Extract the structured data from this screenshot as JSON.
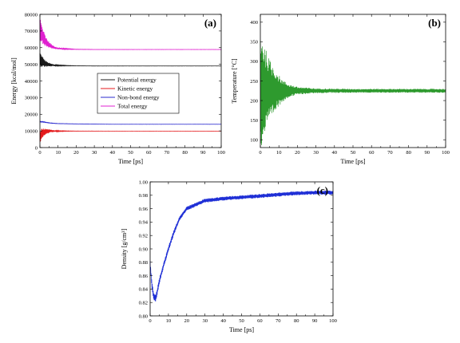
{
  "chart_data": [
    {
      "panel": "(a)",
      "type": "line",
      "xlabel": "Time [ps]",
      "ylabel": "Energy [kcal/mol]",
      "xlim": [
        0,
        100
      ],
      "ylim": [
        0,
        80000
      ],
      "xticks": [
        0,
        10,
        20,
        30,
        40,
        50,
        60,
        70,
        80,
        90,
        100
      ],
      "yticks": [
        0,
        10000,
        20000,
        30000,
        40000,
        50000,
        60000,
        70000,
        80000
      ],
      "legend_position": "center-right",
      "series": [
        {
          "name": "Potential energy",
          "color": "#1a1a1a",
          "x": [
            0,
            1,
            2,
            3,
            4,
            6,
            8,
            10,
            15,
            20,
            30,
            50,
            70,
            100
          ],
          "y": [
            53000,
            52000,
            51000,
            50500,
            50000,
            49600,
            49400,
            49300,
            49200,
            49100,
            49000,
            49000,
            49000,
            49000
          ],
          "noise_amp": [
            4500,
            3500,
            2700,
            2000,
            1500,
            900,
            500,
            300,
            150,
            80,
            60,
            50,
            50,
            50
          ]
        },
        {
          "name": "Kinetic energy",
          "color": "#e41a1c",
          "x": [
            0,
            1,
            2,
            3,
            4,
            6,
            8,
            10,
            15,
            20,
            30,
            50,
            70,
            100
          ],
          "y": [
            6500,
            8000,
            9000,
            9500,
            9800,
            9900,
            9900,
            9900,
            9900,
            9900,
            9900,
            9900,
            9900,
            9900
          ],
          "noise_amp": [
            4500,
            3500,
            2700,
            2000,
            1500,
            900,
            500,
            300,
            150,
            80,
            60,
            50,
            50,
            50
          ]
        },
        {
          "name": "Non-bond energy",
          "color": "#2b2bcf",
          "x": [
            0,
            2,
            4,
            6,
            10,
            20,
            40,
            70,
            100
          ],
          "y": [
            15500,
            15400,
            15000,
            14700,
            14400,
            14200,
            14000,
            14000,
            14000
          ],
          "noise_amp": [
            200,
            200,
            150,
            120,
            100,
            80,
            60,
            60,
            60
          ]
        },
        {
          "name": "Total energy",
          "color": "#e020d0",
          "x": [
            0,
            1,
            2,
            3,
            4,
            6,
            8,
            10,
            15,
            20,
            30,
            50,
            70,
            100
          ],
          "y": [
            71000,
            68000,
            66000,
            64000,
            62500,
            61000,
            60000,
            59500,
            59200,
            59000,
            58900,
            58900,
            58900,
            58900
          ],
          "noise_amp": [
            7000,
            5500,
            4200,
            3200,
            2400,
            1400,
            800,
            500,
            250,
            120,
            80,
            60,
            60,
            60
          ]
        }
      ]
    },
    {
      "panel": "(b)",
      "type": "line",
      "xlabel": "Time [ps]",
      "ylabel": "Temperature [°C]",
      "xlim": [
        0,
        100
      ],
      "ylim": [
        80,
        420
      ],
      "xticks": [
        0,
        10,
        20,
        30,
        40,
        50,
        60,
        70,
        80,
        90,
        100
      ],
      "yticks": [
        100,
        150,
        200,
        250,
        300,
        350,
        400
      ],
      "series": [
        {
          "name": "",
          "color": "#2e9a2e",
          "x": [
            0,
            1,
            2,
            3,
            4,
            6,
            8,
            10,
            12,
            15,
            20,
            30,
            50,
            70,
            100
          ],
          "y": [
            225,
            225,
            225,
            225,
            225,
            225,
            225,
            225,
            225,
            225,
            225,
            225,
            225,
            225,
            225
          ],
          "noise_amp": [
            160,
            140,
            120,
            105,
            90,
            70,
            55,
            40,
            28,
            18,
            10,
            6,
            5,
            5,
            5
          ]
        }
      ]
    },
    {
      "panel": "(c)",
      "type": "line",
      "xlabel": "Time [ps]",
      "ylabel": "Density [g/cm³]",
      "xlim": [
        0,
        100
      ],
      "ylim": [
        0.8,
        1.0
      ],
      "xticks": [
        0,
        10,
        20,
        30,
        40,
        50,
        60,
        70,
        80,
        90,
        100
      ],
      "yticks": [
        0.8,
        0.82,
        0.84,
        0.86,
        0.88,
        0.9,
        0.92,
        0.94,
        0.96,
        0.98,
        1.0
      ],
      "series": [
        {
          "name": "",
          "color": "#1f2fd6",
          "x": [
            0,
            1,
            2,
            3,
            4,
            5,
            7,
            10,
            13,
            16,
            20,
            25,
            30,
            40,
            50,
            60,
            70,
            80,
            90,
            100
          ],
          "y": [
            0.878,
            0.845,
            0.828,
            0.826,
            0.838,
            0.852,
            0.872,
            0.9,
            0.925,
            0.945,
            0.96,
            0.966,
            0.972,
            0.975,
            0.977,
            0.979,
            0.981,
            0.983,
            0.984,
            0.984
          ],
          "noise_amp": [
            0.006,
            0.006,
            0.006,
            0.006,
            0.005,
            0.005,
            0.004,
            0.004,
            0.004,
            0.003,
            0.003,
            0.003,
            0.003,
            0.003,
            0.003,
            0.003,
            0.003,
            0.003,
            0.003,
            0.003
          ]
        }
      ]
    }
  ]
}
